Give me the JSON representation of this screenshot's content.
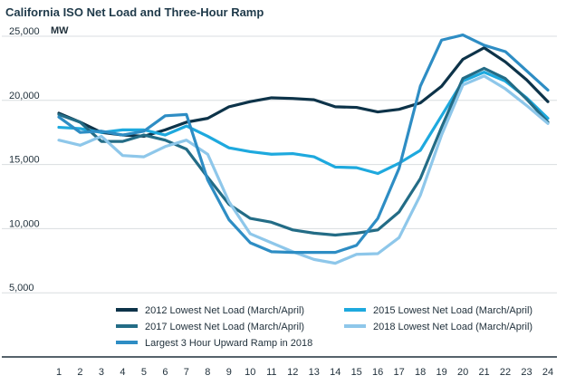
{
  "chart_data": {
    "type": "line",
    "title": "California ISO Net Load and Three-Hour Ramp",
    "ylabel": "MW",
    "xlabel": "",
    "ylim": [
      0,
      25000
    ],
    "yticks": [
      {
        "value": 5000,
        "label": "5,000"
      },
      {
        "value": 10000,
        "label": "10,000"
      },
      {
        "value": 15000,
        "label": "15,000"
      },
      {
        "value": 20000,
        "label": "20,000"
      },
      {
        "value": 25000,
        "label": "25,000"
      }
    ],
    "x": [
      1,
      2,
      3,
      4,
      5,
      6,
      7,
      8,
      9,
      10,
      11,
      12,
      13,
      14,
      15,
      16,
      17,
      18,
      19,
      20,
      21,
      22,
      23,
      24
    ],
    "series": [
      {
        "name": "2012 Lowest Net Load (March/April)",
        "color": "#0d3349",
        "values": [
          19000,
          18300,
          17500,
          17300,
          17200,
          17700,
          18300,
          18600,
          19500,
          19900,
          20200,
          20150,
          20050,
          19500,
          19450,
          19100,
          19300,
          19800,
          21100,
          23200,
          24100,
          23000,
          21600,
          19900
        ]
      },
      {
        "name": "2015 Lowest Net Load (March/April)",
        "color": "#1ea9de",
        "values": [
          17900,
          17800,
          17500,
          17700,
          17700,
          17300,
          18000,
          17200,
          16300,
          16000,
          15800,
          15850,
          15600,
          14800,
          14750,
          14300,
          15100,
          16100,
          18800,
          21500,
          22200,
          21500,
          20200,
          18600
        ]
      },
      {
        "name": "2017 Lowest Net Load (March/April)",
        "color": "#236c86",
        "values": [
          18900,
          18300,
          16800,
          16800,
          17300,
          16900,
          16200,
          14000,
          11900,
          10800,
          10500,
          9900,
          9650,
          9500,
          9650,
          9900,
          11300,
          13900,
          17900,
          21700,
          22500,
          21700,
          20100,
          18300
        ]
      },
      {
        "name": "2018 Lowest Net Load (March/April)",
        "color": "#8ec7ea",
        "values": [
          16900,
          16500,
          17200,
          15700,
          15600,
          16400,
          16900,
          15800,
          12100,
          9600,
          8900,
          8200,
          7600,
          7300,
          8000,
          8050,
          9300,
          12600,
          17300,
          21200,
          21900,
          20900,
          19600,
          18200
        ]
      },
      {
        "name": "Largest 3 Hour Upward Ramp in 2018",
        "color": "#2e8dc4",
        "values": [
          18700,
          17500,
          17600,
          17300,
          17600,
          18800,
          18900,
          13800,
          10700,
          8900,
          8200,
          8150,
          8150,
          8150,
          8700,
          10800,
          14700,
          21100,
          24700,
          25100,
          24300,
          23800,
          22300,
          20800
        ]
      }
    ]
  }
}
